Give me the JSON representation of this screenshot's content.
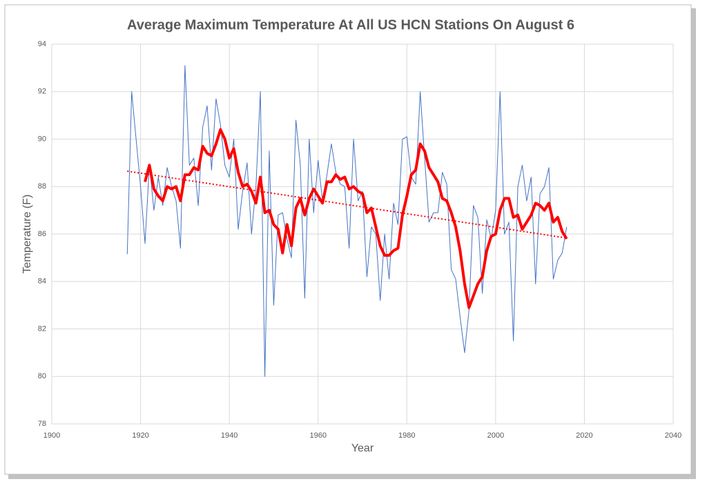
{
  "chart_data": {
    "type": "line",
    "title": "Average Maximum Temperature At All US HCN Stations On August 6",
    "xlabel": "Year",
    "ylabel": "Temperature (F)",
    "x": [
      1917,
      1918,
      1919,
      1920,
      1921,
      1922,
      1923,
      1924,
      1925,
      1926,
      1927,
      1928,
      1929,
      1930,
      1931,
      1932,
      1933,
      1934,
      1935,
      1936,
      1937,
      1938,
      1939,
      1940,
      1941,
      1942,
      1943,
      1944,
      1945,
      1946,
      1947,
      1948,
      1949,
      1950,
      1951,
      1952,
      1953,
      1954,
      1955,
      1956,
      1957,
      1958,
      1959,
      1960,
      1961,
      1962,
      1963,
      1964,
      1965,
      1966,
      1967,
      1968,
      1969,
      1970,
      1971,
      1972,
      1973,
      1974,
      1975,
      1976,
      1977,
      1978,
      1979,
      1980,
      1981,
      1982,
      1983,
      1984,
      1985,
      1986,
      1987,
      1988,
      1989,
      1990,
      1991,
      1992,
      1993,
      1994,
      1995,
      1996,
      1997,
      1998,
      1999,
      2000,
      2001,
      2002,
      2003,
      2004,
      2005,
      2006,
      2007,
      2008,
      2009,
      2010,
      2011,
      2012,
      2013,
      2014,
      2015,
      2016
    ],
    "series": [
      {
        "color": "#4472c4",
        "values": [
          85.15,
          92.0,
          90.0,
          88.0,
          85.6,
          88.9,
          87.0,
          88.4,
          87.2,
          88.8,
          88.0,
          87.4,
          85.4,
          93.1,
          88.9,
          89.2,
          87.2,
          90.5,
          91.4,
          88.7,
          91.7,
          90.6,
          88.9,
          88.4,
          90.0,
          86.2,
          87.8,
          89.0,
          86.0,
          88.0,
          92.0,
          80.0,
          89.5,
          83.0,
          86.8,
          86.9,
          85.8,
          85.0,
          90.8,
          88.9,
          83.3,
          90.0,
          86.9,
          89.1,
          87.4,
          88.5,
          89.8,
          88.6,
          88.1,
          88.0,
          85.4,
          90.0,
          87.4,
          87.8,
          84.2,
          86.3,
          86.0,
          83.2,
          86.0,
          84.1,
          87.3,
          86.4,
          90.0,
          90.1,
          88.4,
          88.1,
          92.0,
          89.2,
          86.5,
          86.9,
          86.9,
          88.6,
          88.1,
          84.5,
          84.1,
          82.5,
          81.0,
          82.8,
          87.2,
          86.7,
          83.5,
          86.6,
          85.8,
          87.0,
          92.0,
          86.0,
          86.5,
          81.5,
          88.0,
          88.9,
          87.4,
          88.4,
          83.9,
          87.7,
          88.0,
          88.8,
          84.1,
          84.9,
          85.2,
          86.3
        ]
      },
      {
        "color": "#ff0000",
        "values": [
          null,
          null,
          null,
          null,
          88.2,
          88.9,
          87.9,
          87.6,
          87.4,
          88.0,
          87.9,
          88.0,
          87.4,
          88.5,
          88.5,
          88.8,
          88.7,
          89.7,
          89.4,
          89.3,
          89.8,
          90.4,
          90.0,
          89.2,
          89.6,
          88.6,
          88.0,
          88.1,
          87.8,
          87.3,
          88.4,
          86.9,
          87.0,
          86.4,
          86.2,
          85.2,
          86.4,
          85.5,
          87.1,
          87.5,
          86.8,
          87.5,
          87.9,
          87.6,
          87.3,
          88.2,
          88.2,
          88.5,
          88.3,
          88.4,
          87.9,
          88.0,
          87.8,
          87.7,
          86.9,
          87.1,
          86.3,
          85.5,
          85.1,
          85.1,
          85.3,
          85.4,
          86.8,
          87.6,
          88.5,
          88.7,
          89.8,
          89.5,
          88.8,
          88.5,
          88.2,
          87.5,
          87.4,
          86.9,
          86.3,
          85.3,
          83.9,
          82.9,
          83.4,
          83.9,
          84.2,
          85.3,
          85.9,
          86.0,
          87.0,
          87.5,
          87.5,
          86.7,
          86.8,
          86.2,
          86.5,
          86.8,
          87.3,
          87.2,
          87.0,
          87.3,
          86.5,
          86.7,
          86.1,
          85.8
        ]
      },
      {
        "color": "#ff0000",
        "line_style": "dotted",
        "x": [
          1917,
          2016
        ],
        "values": [
          88.65,
          85.83
        ]
      }
    ],
    "xlim": [
      1900,
      2040
    ],
    "xticks": [
      1900,
      1920,
      1940,
      1960,
      1980,
      2000,
      2020,
      2040
    ],
    "ylim": [
      78,
      94
    ],
    "yticks": [
      78,
      80,
      82,
      84,
      86,
      88,
      90,
      92,
      94
    ],
    "grid": true
  }
}
